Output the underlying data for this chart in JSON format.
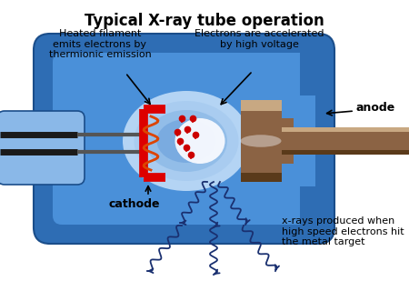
{
  "title": "Typical X-ray tube operation",
  "title_fontsize": 12,
  "title_fontweight": "bold",
  "bg_color": "#ffffff",
  "tube_blue_outer": "#2e6db4",
  "tube_blue_mid": "#4a90d9",
  "tube_blue_inner": "#7ab8f5",
  "tube_blue_center": "#c0dcf8",
  "cathode_color": "#dd0000",
  "anode_brown": "#8B6344",
  "anode_light": "#c8a882",
  "anode_dark": "#5a3a1a",
  "wire_color": "#1a1a1a",
  "wire_gray": "#888888",
  "electron_color": "#cc0000",
  "xray_color": "#1a3070",
  "glow_white": "#f8faff",
  "label_cathode": "cathode",
  "label_anode": "anode",
  "label_filament": "Heated filament\nemits electrons by\nthermionic emission",
  "label_accelerated": "Electrons are accelerated\nby high voltage",
  "label_xray": "x-rays produced when\nhigh speed electrons hit\nthe metal target",
  "label_fontsize": 8
}
